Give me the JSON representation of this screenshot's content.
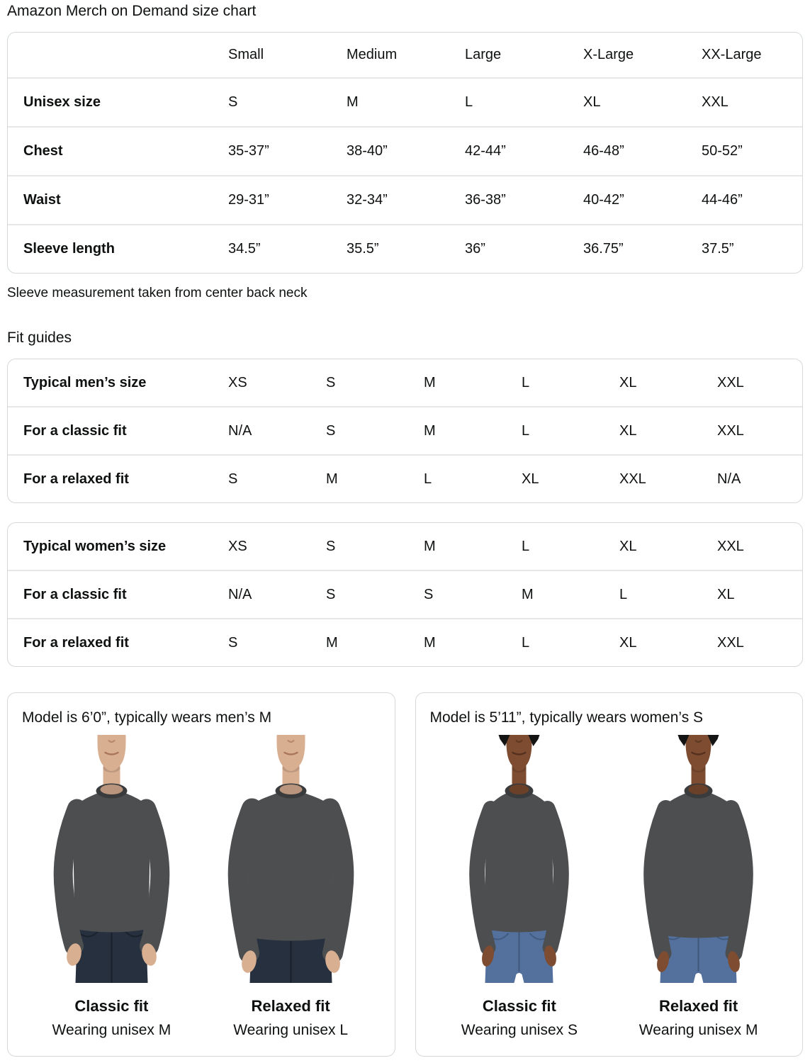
{
  "page": {
    "title": "Amazon Merch on Demand size chart"
  },
  "size_table": {
    "columns": [
      "Small",
      "Medium",
      "Large",
      "X-Large",
      "XX-Large"
    ],
    "rows": [
      {
        "label": "Unisex size",
        "values": [
          "S",
          "M",
          "L",
          "XL",
          "XXL"
        ]
      },
      {
        "label": "Chest",
        "values": [
          "35-37”",
          "38-40”",
          "42-44”",
          "46-48”",
          "50-52”"
        ]
      },
      {
        "label": "Waist",
        "values": [
          "29-31”",
          "32-34”",
          "36-38”",
          "40-42”",
          "44-46”"
        ]
      },
      {
        "label": "Sleeve length",
        "values": [
          "34.5”",
          "35.5”",
          "36”",
          "36.75”",
          "37.5”"
        ]
      }
    ],
    "footnote": "Sleeve measurement taken from center back neck"
  },
  "fit_guides": {
    "heading": "Fit guides",
    "mens_table": {
      "rows": [
        {
          "label": "Typical men’s size",
          "values": [
            "XS",
            "S",
            "M",
            "L",
            "XL",
            "XXL"
          ]
        },
        {
          "label": "For a classic fit",
          "values": [
            "N/A",
            "S",
            "M",
            "L",
            "XL",
            "XXL"
          ]
        },
        {
          "label": "For a relaxed fit",
          "values": [
            "S",
            "M",
            "L",
            "XL",
            "XXL",
            "N/A"
          ]
        }
      ]
    },
    "womens_table": {
      "rows": [
        {
          "label": "Typical women’s size",
          "values": [
            "XS",
            "S",
            "M",
            "L",
            "XL",
            "XXL"
          ]
        },
        {
          "label": "For a classic fit",
          "values": [
            "N/A",
            "S",
            "S",
            "M",
            "L",
            "XL"
          ]
        },
        {
          "label": "For a relaxed fit",
          "values": [
            "S",
            "M",
            "M",
            "L",
            "XL",
            "XXL"
          ]
        }
      ]
    }
  },
  "model_cards": [
    {
      "model_type": "mens",
      "title": "Model is 6’0”, typically wears men’s M",
      "models": [
        {
          "variant": "classic",
          "fit_label": "Classic fit",
          "wearing": "Wearing unisex M"
        },
        {
          "variant": "relaxed",
          "fit_label": "Relaxed fit",
          "wearing": "Wearing unisex L"
        }
      ]
    },
    {
      "model_type": "womens",
      "title": "Model is 5’11”, typically wears women’s S",
      "models": [
        {
          "variant": "classic",
          "fit_label": "Classic fit",
          "wearing": "Wearing unisex S"
        },
        {
          "variant": "relaxed",
          "fit_label": "Relaxed fit",
          "wearing": "Wearing unisex M"
        }
      ]
    }
  ],
  "colors": {
    "text": "#0F1111",
    "table_border": "#d5d9d9",
    "row_divider": "#e7e7e7"
  },
  "figures": {
    "shirt_color": "#4d4e50",
    "collar_color": "#3a3b3d",
    "mens_skin": "#d9af92",
    "mens_skin_shade": "#a9755c",
    "mens_jeans": "#26303e",
    "mens_jeans_dark": "#151c26",
    "womens_skin": "#7d4c31",
    "womens_skin_shade": "#53301d",
    "womens_jeans": "#54719d",
    "womens_jeans_dark": "#3a5173",
    "hair_color": "#141414"
  }
}
